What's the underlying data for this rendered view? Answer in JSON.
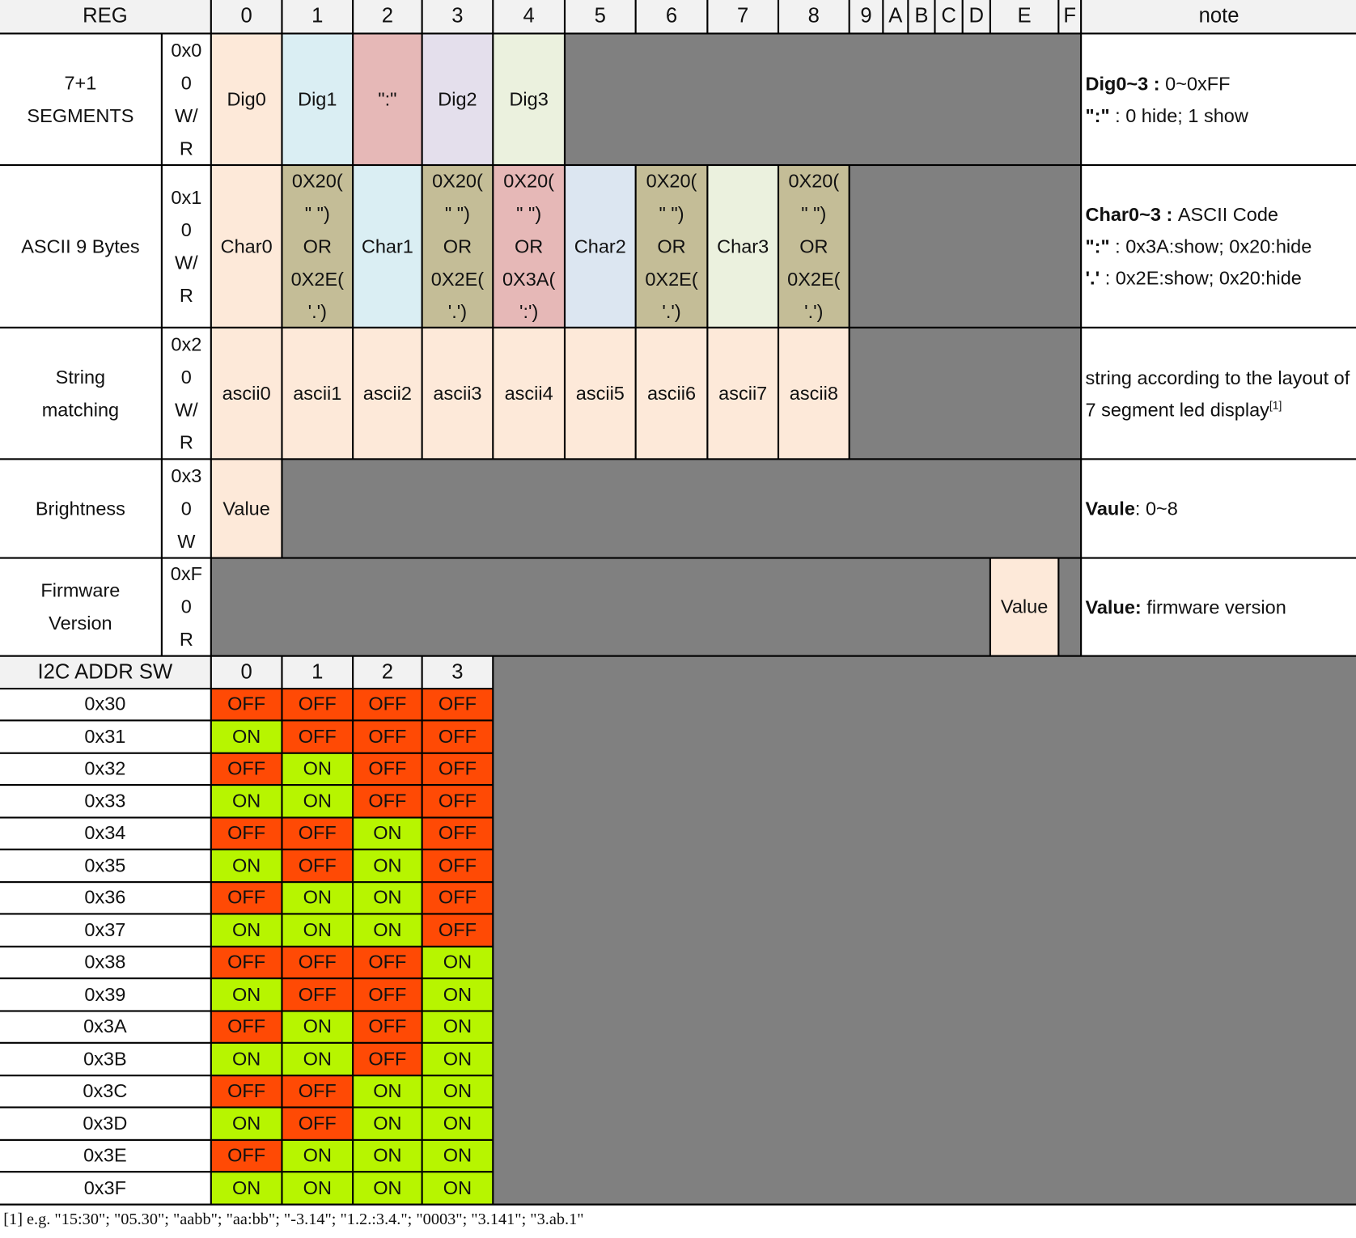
{
  "colors": {
    "peach": "#fde9d9",
    "blue": "#daeef3",
    "pink": "#e6b8b7",
    "lavender": "#e4dfec",
    "green": "#ebf1de",
    "steel": "#dce6f1",
    "olive": "#c4bd97",
    "gray": "#808080",
    "on": "#b7f500",
    "off": "#ff4a05",
    "header": "#f2f2f2"
  },
  "header": {
    "reg": "REG",
    "cols": [
      "0",
      "1",
      "2",
      "3",
      "4",
      "5",
      "6",
      "7",
      "8",
      "9",
      "A",
      "B",
      "C",
      "D",
      "E",
      "F"
    ],
    "note": "note"
  },
  "registers": [
    {
      "label": "7+1\nSEGMENTS",
      "addr": "0x0\n0\nW/\nR",
      "cells": [
        "Dig0",
        "Dig1",
        "\":\"",
        "Dig2",
        "Dig3"
      ],
      "note": [
        [
          {
            "b": "Dig0~3 : "
          },
          {
            "t": "0~0xFF"
          }
        ],
        [
          {
            "b": "\":\""
          },
          {
            "t": " : 0 hide; 1 show"
          }
        ]
      ]
    },
    {
      "label": "ASCII 9 Bytes",
      "addr": "0x1\n0\nW/\nR",
      "cells": [
        "Char0",
        "0X20(\n\" \")\nOR\n0X2E(\n'.')",
        "Char1",
        "0X20(\n\" \")\nOR\n0X2E(\n'.')",
        "0X20(\n\" \")\nOR\n0X3A(\n':')",
        "Char2",
        "0X20(\n\" \")\nOR\n0X2E(\n'.')",
        "Char3",
        "0X20(\n\" \")\nOR\n0X2E(\n'.')"
      ],
      "note": [
        [
          {
            "b": "Char0~3 : "
          },
          {
            "t": "ASCII Code"
          }
        ],
        [
          {
            "b": "\":\""
          },
          {
            "t": " : 0x3A:show; 0x20:hide"
          }
        ],
        [
          {
            "b": "'.'"
          },
          {
            "t": " : 0x2E:show; 0x20:hide"
          }
        ]
      ]
    },
    {
      "label": "String\nmatching",
      "addr": "0x2\n0\nW/\nR",
      "cells": [
        "ascii0",
        "ascii1",
        "ascii2",
        "ascii3",
        "ascii4",
        "ascii5",
        "ascii6",
        "ascii7",
        "ascii8"
      ],
      "note": [
        [
          {
            "t": "string according to the layout of 7 segment led display"
          },
          {
            "s": "[1]"
          }
        ]
      ]
    },
    {
      "label": "Brightness",
      "addr": "0x3\n0\nW",
      "cells": [
        "Value"
      ],
      "note": [
        [
          {
            "b": "Vaule"
          },
          {
            "t": ": 0~8"
          }
        ]
      ]
    },
    {
      "label": "Firmware\nVersion",
      "addr": "0xF\n0\nR",
      "cells": [
        "Value"
      ],
      "note": [
        [
          {
            "b": "Value:"
          },
          {
            "t": " firmware version"
          }
        ]
      ]
    }
  ],
  "i2c": {
    "title": "I2C ADDR SW",
    "cols": [
      "0",
      "1",
      "2",
      "3"
    ],
    "rows": [
      {
        "addr": "0x30",
        "sw": [
          "OFF",
          "OFF",
          "OFF",
          "OFF"
        ]
      },
      {
        "addr": "0x31",
        "sw": [
          "ON",
          "OFF",
          "OFF",
          "OFF"
        ]
      },
      {
        "addr": "0x32",
        "sw": [
          "OFF",
          "ON",
          "OFF",
          "OFF"
        ]
      },
      {
        "addr": "0x33",
        "sw": [
          "ON",
          "ON",
          "OFF",
          "OFF"
        ]
      },
      {
        "addr": "0x34",
        "sw": [
          "OFF",
          "OFF",
          "ON",
          "OFF"
        ]
      },
      {
        "addr": "0x35",
        "sw": [
          "ON",
          "OFF",
          "ON",
          "OFF"
        ]
      },
      {
        "addr": "0x36",
        "sw": [
          "OFF",
          "ON",
          "ON",
          "OFF"
        ]
      },
      {
        "addr": "0x37",
        "sw": [
          "ON",
          "ON",
          "ON",
          "OFF"
        ]
      },
      {
        "addr": "0x38",
        "sw": [
          "OFF",
          "OFF",
          "OFF",
          "ON"
        ]
      },
      {
        "addr": "0x39",
        "sw": [
          "ON",
          "OFF",
          "OFF",
          "ON"
        ]
      },
      {
        "addr": "0x3A",
        "sw": [
          "OFF",
          "ON",
          "OFF",
          "ON"
        ]
      },
      {
        "addr": "0x3B",
        "sw": [
          "ON",
          "ON",
          "OFF",
          "ON"
        ]
      },
      {
        "addr": "0x3C",
        "sw": [
          "OFF",
          "OFF",
          "ON",
          "ON"
        ]
      },
      {
        "addr": "0x3D",
        "sw": [
          "ON",
          "OFF",
          "ON",
          "ON"
        ]
      },
      {
        "addr": "0x3E",
        "sw": [
          "OFF",
          "ON",
          "ON",
          "ON"
        ]
      },
      {
        "addr": "0x3F",
        "sw": [
          "ON",
          "ON",
          "ON",
          "ON"
        ]
      }
    ]
  },
  "footnote": "[1] e.g. \"15:30\"; \"05.30\"; \"aabb\"; \"aa:bb\"; \"-3.14\"; \"1.2.:3.4.\"; \"0003\"; \"3.141\"; \"3.ab.1\""
}
